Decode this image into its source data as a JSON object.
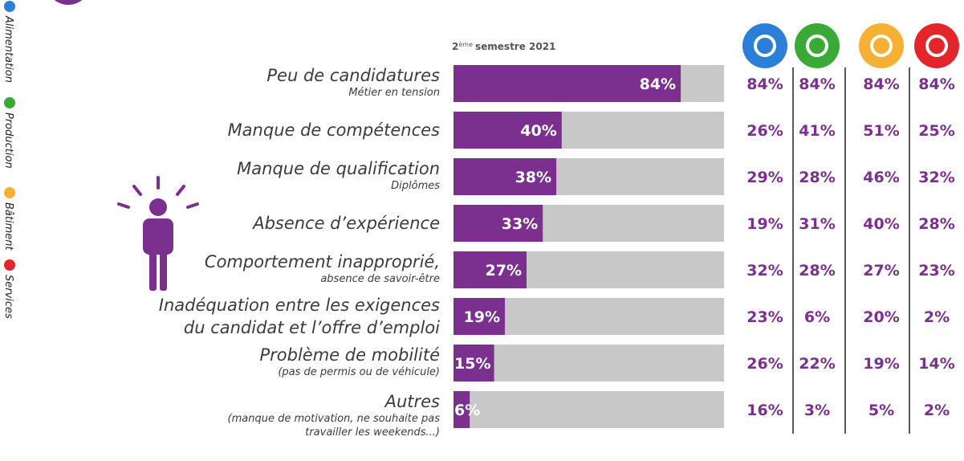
{
  "chart_data": {
    "type": "bar",
    "orientation": "horizontal",
    "period": {
      "number": "2",
      "suffix": "ème",
      "rest": "semestre 2021"
    },
    "categories": [
      "Peu de candidatures",
      "Manque de compétences",
      "Manque  de qualification",
      "Absence d’expérience",
      "Comportement inapproprié,",
      "Inadéquation entre les exigences du candidat et l’offre d’emploi",
      "Problème de mobilité",
      "Autres"
    ],
    "category_notes": [
      "Métier en tension",
      null,
      "Diplômes",
      null,
      "absence de savoir-être",
      null,
      "(pas de permis ou de véhicule)",
      "(manque de motivation, ne souhaite pas travailler les weekends...)"
    ],
    "values": [
      84,
      40,
      38,
      33,
      27,
      19,
      15,
      6
    ],
    "value_labels": [
      "84%",
      "40%",
      "38%",
      "33%",
      "27%",
      "19%",
      "15%",
      "6%"
    ],
    "color": "#7b2f8e",
    "track_color": "#c8c8c8",
    "xlim": [
      0,
      100
    ],
    "sectors": [
      {
        "name": "Alimentation",
        "color": "#2c7fd6",
        "value_labels": [
          "84%",
          "26%",
          "29%",
          "19%",
          "32%",
          "23%",
          "26%",
          "16%"
        ]
      },
      {
        "name": "Production",
        "color": "#3aa935",
        "value_labels": [
          "84%",
          "41%",
          "28%",
          "31%",
          "28%",
          "6%",
          "22%",
          "3%"
        ]
      },
      {
        "name": "Bâtiment",
        "color": "#f4b133",
        "value_labels": [
          "84%",
          "51%",
          "46%",
          "40%",
          "27%",
          "20%",
          "19%",
          "5%"
        ]
      },
      {
        "name": "Services",
        "color": "#e4262c",
        "value_labels": [
          "84%",
          "25%",
          "32%",
          "28%",
          "23%",
          "2%",
          "14%",
          "2%"
        ]
      }
    ]
  }
}
